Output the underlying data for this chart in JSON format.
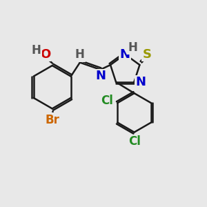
{
  "bg_color": "#e8e8e8",
  "bond_color": "#1a1a1a",
  "bond_width": 1.8,
  "atoms": {
    "O": {
      "color": "#cc0000",
      "fontsize": 13,
      "fontweight": "bold"
    },
    "N": {
      "color": "#0000cc",
      "fontsize": 13,
      "fontweight": "bold"
    },
    "S": {
      "color": "#999900",
      "fontsize": 13,
      "fontweight": "bold"
    },
    "Br": {
      "color": "#cc6600",
      "fontsize": 12,
      "fontweight": "bold"
    },
    "Cl": {
      "color": "#228b22",
      "fontsize": 12,
      "fontweight": "bold"
    },
    "H": {
      "color": "#555555",
      "fontsize": 12,
      "fontweight": "bold"
    }
  }
}
